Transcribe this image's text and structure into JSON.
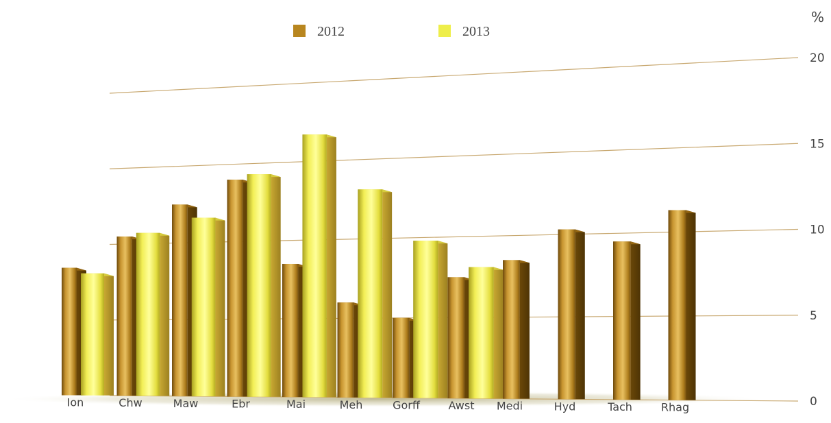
{
  "chart_data": {
    "type": "bar",
    "title": "",
    "unit_label": "%",
    "categories": [
      "Ion",
      "Chw",
      "Maw",
      "Ebr",
      "Mai",
      "Meh",
      "Gorff",
      "Awst",
      "Medi",
      "Hyd",
      "Tach",
      "Rhag"
    ],
    "series": [
      {
        "name": "2012",
        "values": [
          8.5,
          10.5,
          12.5,
          14.0,
          8.5,
          6.0,
          5.0,
          7.5,
          8.5,
          10.3,
          9.5,
          11.3
        ]
      },
      {
        "name": "2013",
        "values": [
          8.1,
          10.7,
          11.6,
          14.3,
          16.7,
          13.1,
          9.8,
          8.1,
          null,
          null,
          null,
          null
        ]
      }
    ],
    "ylim": [
      0,
      20
    ],
    "yticks": [
      0,
      5,
      10,
      15,
      20
    ],
    "grid": true,
    "legend_position": "top-left",
    "colors": {
      "series_2012": "#B8861F",
      "series_2013": "#EEEE4A",
      "gridline": "#C8A870"
    }
  }
}
